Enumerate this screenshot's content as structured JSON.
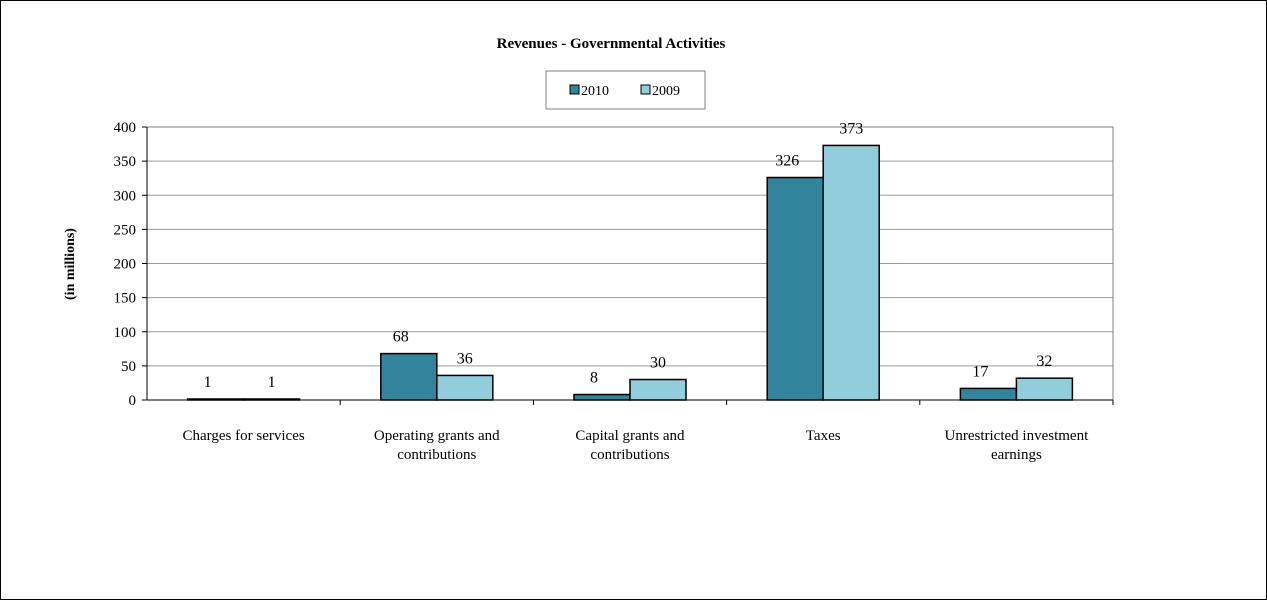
{
  "chart_data": {
    "type": "bar",
    "title": "Revenues - Governmental Activities",
    "ylabel": "(in millions)",
    "xlabel": "",
    "ylim": [
      0,
      400
    ],
    "yticks": [
      0,
      50,
      100,
      150,
      200,
      250,
      300,
      350,
      400
    ],
    "grid": true,
    "legend_position": "top-center",
    "categories": [
      [
        "Charges for services"
      ],
      [
        "Operating grants and",
        "contributions"
      ],
      [
        "Capital grants and",
        "contributions"
      ],
      [
        "Taxes"
      ],
      [
        "Unrestricted investment",
        "earnings"
      ]
    ],
    "series": [
      {
        "name": "2010",
        "color": "#31849b",
        "values": [
          1,
          68,
          8,
          326,
          17
        ]
      },
      {
        "name": "2009",
        "color": "#92cddc",
        "values": [
          1,
          36,
          30,
          373,
          32
        ]
      }
    ]
  }
}
